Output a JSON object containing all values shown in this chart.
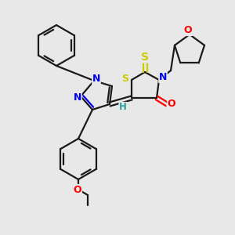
{
  "bg_color": "#e8e8e8",
  "bond_color": "#1a1a1a",
  "atom_colors": {
    "N": "#0000ee",
    "S": "#cccc00",
    "O": "#ff0000",
    "H": "#2aa0a0",
    "C": "#1a1a1a"
  },
  "figsize": [
    3.0,
    3.0
  ],
  "dpi": 100
}
